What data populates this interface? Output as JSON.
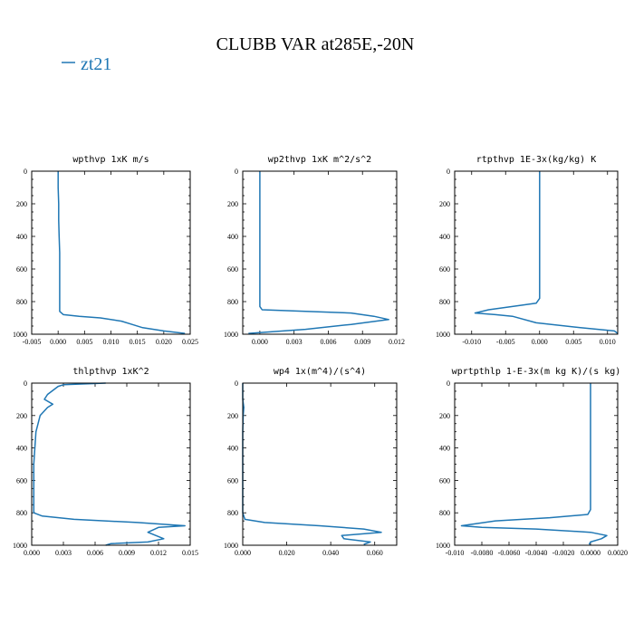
{
  "figure": {
    "title": "CLUBB VAR at285E,-20N",
    "legend": [
      {
        "label": "zt21",
        "color": "#1f77b4"
      }
    ]
  },
  "chart_data": [
    {
      "type": "line",
      "title": "wpthvp  1xK m/s",
      "xlim": [
        -0.005,
        0.025
      ],
      "ylim": [
        1000,
        0
      ],
      "xticks": [
        "-0.005",
        "0.000",
        "0.005",
        "0.010",
        "0.015",
        "0.020",
        "0.025"
      ],
      "yticks": [
        "0",
        "200",
        "400",
        "600",
        "800",
        "1000"
      ],
      "series": [
        {
          "color": "#1f77b4",
          "x": [
            0.0,
            0.0,
            0.0001,
            0.0001,
            0.0002,
            0.0003,
            0.0003,
            0.0003,
            0.0003,
            0.0003,
            0.001,
            0.004,
            0.008,
            0.012,
            0.014,
            0.016,
            0.02,
            0.024
          ],
          "y": [
            0,
            100,
            200,
            300,
            400,
            500,
            600,
            700,
            800,
            860,
            880,
            890,
            900,
            920,
            940,
            960,
            980,
            995
          ]
        }
      ]
    },
    {
      "type": "line",
      "title": "wp2thvp  1xK m^2/s^2",
      "xlim": [
        -0.0015,
        0.012
      ],
      "ylim": [
        1000,
        0
      ],
      "xticks": [
        "0.000",
        "0.003",
        "0.006",
        "0.009",
        "0.012"
      ],
      "yticks": [
        "0",
        "200",
        "400",
        "600",
        "800",
        "1000"
      ],
      "series": [
        {
          "color": "#1f77b4",
          "x": [
            0.0,
            0.0,
            0.0,
            0.0,
            0.0,
            0.0,
            0.0,
            0.0,
            0.0,
            0.0,
            0.0002,
            0.004,
            0.008,
            0.01,
            0.0113,
            0.008,
            0.004,
            -0.001
          ],
          "y": [
            0,
            100,
            200,
            300,
            400,
            500,
            600,
            700,
            800,
            830,
            850,
            860,
            870,
            890,
            910,
            940,
            970,
            995
          ]
        }
      ]
    },
    {
      "type": "line",
      "title": "rtpthvp  1E-3x(kg/kg) K",
      "xlim": [
        -0.0125,
        0.0115
      ],
      "ylim": [
        1000,
        0
      ],
      "xticks": [
        "-0.010",
        "-0.005",
        "0.000",
        "0.005",
        "0.010"
      ],
      "yticks": [
        "0",
        "200",
        "400",
        "600",
        "800",
        "1000"
      ],
      "series": [
        {
          "color": "#1f77b4",
          "x": [
            0.0,
            0.0,
            0.0,
            0.0,
            0.0,
            0.0,
            0.0,
            0.0,
            0.0,
            -0.0005,
            -0.004,
            -0.0075,
            -0.0095,
            -0.0065,
            -0.004,
            -0.0005,
            0.006,
            0.011,
            0.0115
          ],
          "y": [
            0,
            100,
            200,
            300,
            400,
            500,
            600,
            700,
            780,
            810,
            830,
            850,
            870,
            880,
            890,
            930,
            960,
            980,
            995
          ]
        }
      ]
    },
    {
      "type": "line",
      "title": "thlpthvp  1xK^2",
      "xlim": [
        0.0,
        0.015
      ],
      "ylim": [
        1000,
        0
      ],
      "xticks": [
        "0.000",
        "0.003",
        "0.006",
        "0.009",
        "0.012",
        "0.015"
      ],
      "yticks": [
        "0",
        "200",
        "400",
        "600",
        "800",
        "1000"
      ],
      "series": [
        {
          "color": "#1f77b4",
          "x": [
            0.007,
            0.003,
            0.0025,
            0.0015,
            0.0012,
            0.002,
            0.0015,
            0.0008,
            0.0006,
            0.0004,
            0.0003,
            0.0002,
            0.0002,
            0.0002,
            0.0002,
            0.0002,
            0.001,
            0.004,
            0.01,
            0.0145,
            0.012,
            0.011,
            0.0125,
            0.011,
            0.0075,
            0.007
          ],
          "y": [
            0,
            10,
            20,
            70,
            100,
            130,
            150,
            200,
            250,
            300,
            400,
            500,
            600,
            700,
            780,
            800,
            820,
            840,
            860,
            880,
            890,
            920,
            960,
            980,
            990,
            1000
          ]
        }
      ]
    },
    {
      "type": "line",
      "title": "wp4  1x(m^4)/(s^4)",
      "xlim": [
        0.0,
        0.07
      ],
      "ylim": [
        1000,
        0
      ],
      "xticks": [
        "0.000",
        "0.020",
        "0.040",
        "0.060"
      ],
      "yticks": [
        "0",
        "200",
        "400",
        "600",
        "800",
        "1000"
      ],
      "series": [
        {
          "color": "#1f77b4",
          "x": [
            0.0,
            0.0,
            0.0005,
            0.0002,
            0.0,
            0.0,
            0.0,
            0.0,
            0.0,
            0.001,
            0.01,
            0.035,
            0.055,
            0.063,
            0.045,
            0.046,
            0.058,
            0.055
          ],
          "y": [
            0,
            100,
            150,
            200,
            300,
            400,
            500,
            600,
            800,
            840,
            860,
            880,
            900,
            920,
            940,
            960,
            980,
            995
          ]
        }
      ]
    },
    {
      "type": "line",
      "title": "wprtpthlp  1-E-3x(m kg K)/(s kg)",
      "xlim": [
        -0.01,
        0.002
      ],
      "ylim": [
        1000,
        0
      ],
      "xticks": [
        "-0.010",
        "-0.0080",
        "-0.0060",
        "-0.0040",
        "-0.0020",
        "0.0000",
        "0.0020"
      ],
      "yticks": [
        "0",
        "200",
        "400",
        "600",
        "800",
        "1000"
      ],
      "series": [
        {
          "color": "#1f77b4",
          "x": [
            0.0,
            0.0,
            0.0,
            0.0,
            0.0,
            0.0,
            0.0,
            0.0,
            0.0,
            -0.0002,
            -0.003,
            -0.007,
            -0.0095,
            -0.008,
            -0.004,
            0.0,
            0.0012,
            0.0008,
            0.0,
            -0.0001
          ],
          "y": [
            0,
            100,
            200,
            300,
            400,
            500,
            600,
            700,
            780,
            810,
            830,
            850,
            880,
            890,
            900,
            920,
            940,
            960,
            980,
            995
          ]
        }
      ]
    }
  ]
}
